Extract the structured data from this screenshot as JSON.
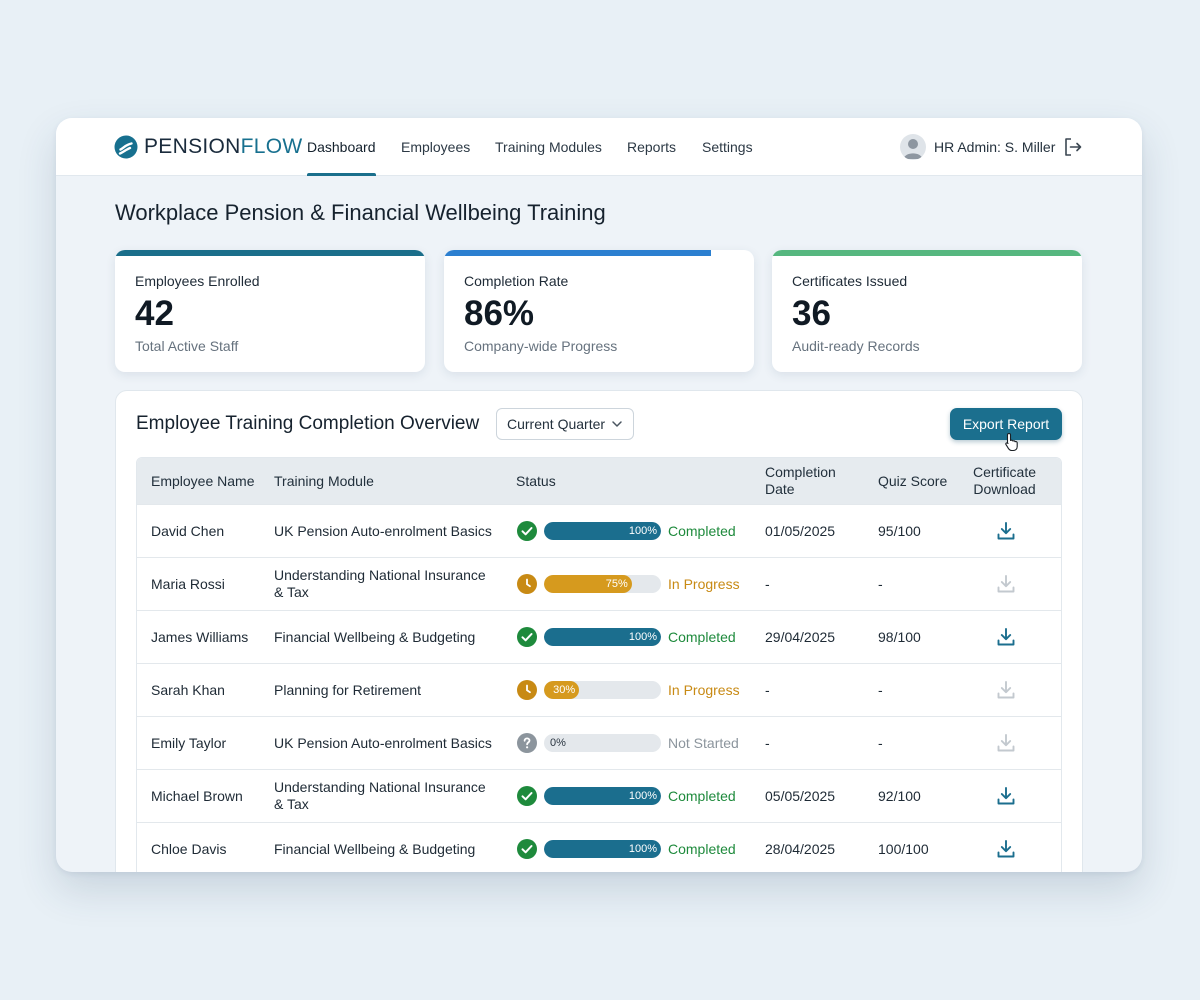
{
  "brand": {
    "part1": "PENSION",
    "part2": "FLOW"
  },
  "nav": [
    {
      "label": "Dashboard",
      "active": true
    },
    {
      "label": "Employees",
      "active": false
    },
    {
      "label": "Training Modules",
      "active": false
    },
    {
      "label": "Reports",
      "active": false
    },
    {
      "label": "Settings",
      "active": false
    }
  ],
  "user": {
    "name": "HR Admin: S. Miller"
  },
  "page": {
    "title": "Workplace Pension & Financial Wellbeing Training"
  },
  "stats": [
    {
      "label": "Employees Enrolled",
      "value": "42",
      "sub": "Total Active Staff",
      "accent": "#1a6e8a"
    },
    {
      "label": "Completion Rate",
      "value": "86%",
      "sub": "Company-wide Progress",
      "accent": "#2b7fd0",
      "progress": 0.86
    },
    {
      "label": "Certificates Issued",
      "value": "36",
      "sub": "Audit-ready Records",
      "accent": "#56b77f"
    }
  ],
  "overview": {
    "title": "Employee Training Completion Overview",
    "filter": "Current Quarter",
    "export_label": "Export Report"
  },
  "table": {
    "headers": {
      "name": "Employee Name",
      "module": "Training Module",
      "status": "Status",
      "date": [
        "Completion",
        "Date"
      ],
      "score": "Quiz Score",
      "cert": [
        "Certificate",
        "Download"
      ]
    },
    "rows": [
      {
        "name": "David Chen",
        "module": [
          "UK Pension Auto-enrolment Basics"
        ],
        "progress": 100,
        "progress_label": "100%",
        "status": "Completed",
        "date": "01/05/2025",
        "score": "95/100",
        "cert_available": true
      },
      {
        "name": "Maria Rossi",
        "module": [
          "Understanding National Insurance",
          "& Tax"
        ],
        "progress": 75,
        "progress_label": "75%",
        "status": "In Progress",
        "date": "-",
        "score": "-",
        "cert_available": false
      },
      {
        "name": "James Williams",
        "module": [
          "Financial Wellbeing & Budgeting"
        ],
        "progress": 100,
        "progress_label": "100%",
        "status": "Completed",
        "date": "29/04/2025",
        "score": "98/100",
        "cert_available": true
      },
      {
        "name": "Sarah Khan",
        "module": [
          "Planning for Retirement"
        ],
        "progress": 30,
        "progress_label": "30%",
        "status": "In Progress",
        "date": "-",
        "score": "-",
        "cert_available": false
      },
      {
        "name": "Emily Taylor",
        "module": [
          "UK Pension Auto-enrolment Basics"
        ],
        "progress": 0,
        "progress_label": "0%",
        "status": "Not Started",
        "date": "-",
        "score": "-",
        "cert_available": false
      },
      {
        "name": "Michael Brown",
        "module": [
          "Understanding National Insurance",
          "& Tax"
        ],
        "progress": 100,
        "progress_label": "100%",
        "status": "Completed",
        "date": "05/05/2025",
        "score": "92/100",
        "cert_available": true
      },
      {
        "name": "Chloe Davis",
        "module": [
          "Financial Wellbeing & Budgeting"
        ],
        "progress": 100,
        "progress_label": "100%",
        "status": "Completed",
        "date": "28/04/2025",
        "score": "100/100",
        "cert_available": true
      }
    ]
  },
  "colors": {
    "completed": "#1e8a3c",
    "completed_bar": "#1b6e8e",
    "in_progress": "#c88a14",
    "in_progress_bar": "#d69a1e",
    "not_started": "#8c959d",
    "download_active": "#1b6e8e",
    "download_disabled": "#c3c9cf"
  },
  "icons": {
    "logo": "pensionflow-logo-icon",
    "avatar": "user-avatar-icon",
    "logout": "logout-icon",
    "completed": "check-circle-icon",
    "in_progress": "clock-icon",
    "not_started": "question-circle-icon",
    "download": "download-icon",
    "dropdown": "chevron-down-icon"
  }
}
